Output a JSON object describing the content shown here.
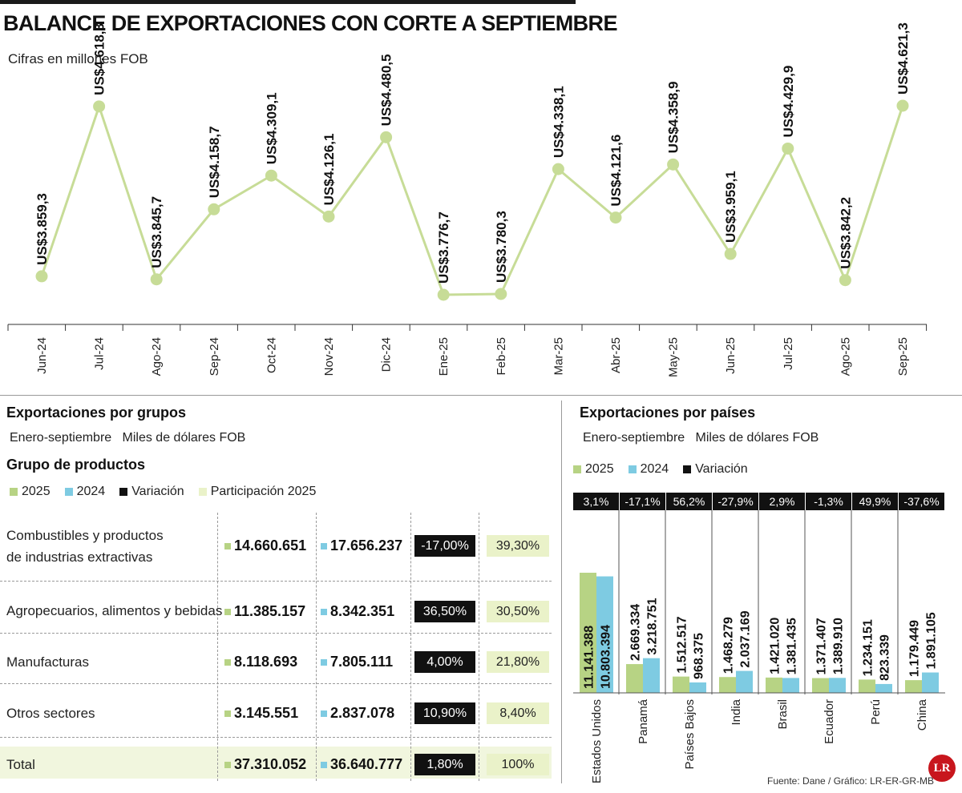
{
  "title": "BALANCE DE EXPORTACIONES CON CORTE A SEPTIEMBRE",
  "subtitle": "Cifras en millones FOB",
  "colors": {
    "c2025": "#b7d384",
    "c2024": "#7ecbe2",
    "variacion": "#111111",
    "participacion": "#eaf2c9",
    "line": "#c7dc97"
  },
  "chart_data": [
    {
      "type": "line",
      "title": "BALANCE DE EXPORTACIONES CON CORTE A SEPTIEMBRE",
      "subtitle": "Cifras en millones FOB",
      "categories": [
        "Jun-24",
        "Jul-24",
        "Ago-24",
        "Sep-24",
        "Oct-24",
        "Nov-24",
        "Dic-24",
        "Ene-25",
        "Feb-25",
        "Mar-25",
        "Abr-25",
        "May-25",
        "Jun-25",
        "Jul-25",
        "Ago-25",
        "Sep-25"
      ],
      "values": [
        3859.3,
        4618.3,
        3845.7,
        4158.7,
        4309.1,
        4126.1,
        4480.5,
        3776.7,
        3780.3,
        4338.1,
        4121.6,
        4358.9,
        3959.1,
        4429.9,
        3842.2,
        4621.3
      ],
      "labels": [
        "US$3.859,3",
        "US$4.618,3",
        "US$3.845,7",
        "US$4.158,7",
        "US$4.309,1",
        "US$4.126,1",
        "US$4.480,5",
        "US$3.776,7",
        "US$3.780,3",
        "US$4.338,1",
        "US$4.121,6",
        "US$4.358,9",
        "US$3.959,1",
        "US$4.429,9",
        "US$3.842,2",
        "US$4.621,3"
      ],
      "ylim": [
        3500,
        4900
      ]
    },
    {
      "type": "bar",
      "title": "Exportaciones por países",
      "categories": [
        "Estados Unidos",
        "Panamá",
        "Países Bajos",
        "India",
        "Brasil",
        "Ecuador",
        "Perú",
        "China"
      ],
      "series": [
        {
          "name": "2025",
          "values": [
            11141388,
            2669334,
            1512517,
            1468279,
            1421020,
            1371407,
            1234151,
            1179449
          ],
          "labels": [
            "11.141.388",
            "2.669.334",
            "1.512.517",
            "1.468.279",
            "1.421.020",
            "1.371.407",
            "1.234.151",
            "1.179.449"
          ]
        },
        {
          "name": "2024",
          "values": [
            10803394,
            3218751,
            968375,
            2037169,
            1381435,
            1389910,
            823339,
            1891105
          ],
          "labels": [
            "10.803.394",
            "3.218.751",
            "968.375",
            "2.037.169",
            "1.381.435",
            "1.389.910",
            "823.339",
            "1.891.105"
          ]
        }
      ],
      "variacion": [
        "3,1%",
        "-17,1%",
        "56,2%",
        "-27,9%",
        "2,9%",
        "-1,3%",
        "49,9%",
        "-37,6%"
      ]
    }
  ],
  "groups": {
    "title": "Exportaciones por grupos",
    "period": "Enero-septiembre",
    "unit": "Miles de dólares FOB",
    "table_title": "Grupo de productos",
    "legend": {
      "y2025": "2025",
      "y2024": "2024",
      "variacion": "Variación",
      "participacion": "Participación 2025"
    },
    "rows": [
      {
        "label": "Combustibles y productos",
        "label2": "de industrias extractivas",
        "v2025": "14.660.651",
        "v2024": "17.656.237",
        "variacion": "-17,00%",
        "participacion": "39,30%"
      },
      {
        "label": "Agropecuarios, alimentos y bebidas",
        "v2025": "11.385.157",
        "v2024": "8.342.351",
        "variacion": "36,50%",
        "participacion": "30,50%"
      },
      {
        "label": "Manufacturas",
        "v2025": "8.118.693",
        "v2024": "7.805.111",
        "variacion": "4,00%",
        "participacion": "21,80%"
      },
      {
        "label": "Otros sectores",
        "v2025": "3.145.551",
        "v2024": "2.837.078",
        "variacion": "10,90%",
        "participacion": "8,40%"
      },
      {
        "label": "Total",
        "v2025": "37.310.052",
        "v2024": "36.640.777",
        "variacion": "1,80%",
        "participacion": "100%"
      }
    ]
  },
  "countries": {
    "title": "Exportaciones por países",
    "period": "Enero-septiembre",
    "unit": "Miles de dólares FOB",
    "legend": {
      "y2025": "2025",
      "y2024": "2024",
      "variacion": "Variación"
    }
  },
  "source": "Fuente: Dane / Gráfico: LR-ER-GR-MB",
  "logo": "LR"
}
